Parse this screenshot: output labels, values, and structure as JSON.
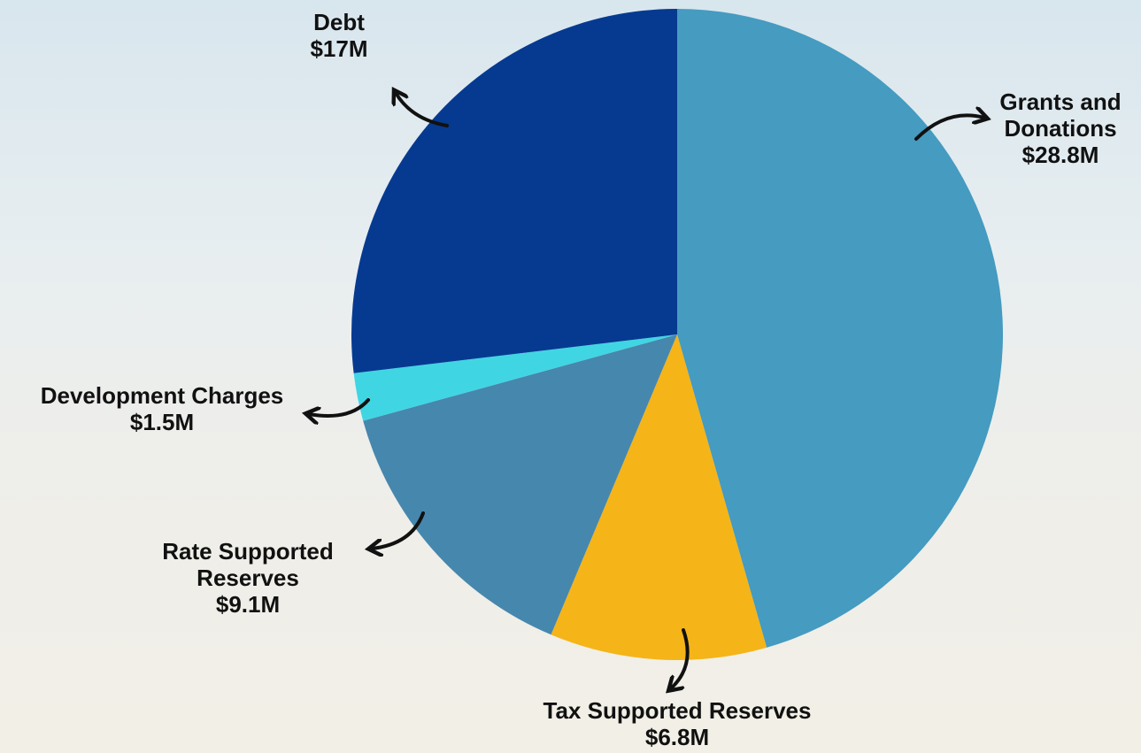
{
  "chart_data": {
    "type": "pie",
    "categories": [
      "Grants and Donations",
      "Tax Supported Reserves",
      "Rate Supported Reserves",
      "Development Charges",
      "Debt"
    ],
    "values": [
      28.8,
      6.8,
      9.1,
      1.5,
      17
    ],
    "value_labels": [
      "$28.8M",
      "$6.8M",
      "$9.1M",
      "$1.5M",
      "$17M"
    ],
    "colors": [
      "#459bc0",
      "#f5b418",
      "#4687ae",
      "#40d5e3",
      "#063a91"
    ]
  }
}
